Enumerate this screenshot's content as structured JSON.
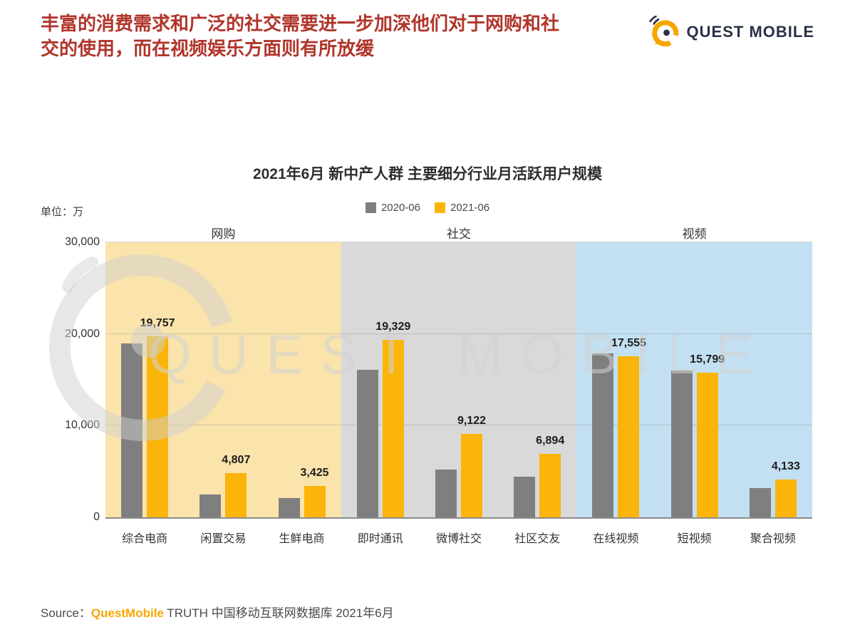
{
  "header": {
    "title": "丰富的消费需求和广泛的社交需要进一步加深他们对于网购和社交的使用，而在视频娱乐方面则有所放缓"
  },
  "brand": {
    "name": "QUEST MOBILE",
    "watermark": "QUEST MOBILE"
  },
  "colors": {
    "header_text": "#B0352B",
    "brand_orange": "#F7A600",
    "brand_dark": "#2B3147",
    "bar_2020": "#7F7F7F",
    "bar_2021": "#FBB40A",
    "band_shopping": "#FAE4AC",
    "band_social": "#D9D9D9",
    "band_video": "#C3E0F2"
  },
  "chart_data": {
    "type": "bar",
    "title": "2021年6月 新中产人群 主要细分行业月活跃用户规模",
    "unit_label": "单位：万",
    "categories": [
      "综合电商",
      "闲置交易",
      "生鲜电商",
      "即时通讯",
      "微博社交",
      "社区交友",
      "在线视频",
      "短视频",
      "聚合视频"
    ],
    "groups": [
      {
        "label": "网购",
        "span": 3,
        "band_color": "#FAE4AC"
      },
      {
        "label": "社交",
        "span": 3,
        "band_color": "#D9D9D9"
      },
      {
        "label": "视频",
        "span": 3,
        "band_color": "#C3E0F2"
      }
    ],
    "series": [
      {
        "name": "2020-06",
        "color": "#7F7F7F",
        "show_value_labels": false,
        "values": [
          19000,
          2500,
          2100,
          16100,
          5200,
          4400,
          17900,
          16000,
          3200
        ]
      },
      {
        "name": "2021-06",
        "color": "#FBB40A",
        "show_value_labels": true,
        "values": [
          19757,
          4807,
          3425,
          19329,
          9122,
          6894,
          17555,
          15799,
          4133
        ]
      }
    ],
    "ylim": [
      0,
      30000
    ],
    "y_ticks": [
      0,
      10000,
      20000,
      30000
    ],
    "y_tick_labels": [
      "0",
      "10,000",
      "20,000",
      "30,000"
    ],
    "legend_position": "top",
    "grid": true
  },
  "source": {
    "prefix": "Source：",
    "brand": "QuestMobile",
    "rest": " TRUTH 中国移动互联网数据库 2021年6月"
  }
}
